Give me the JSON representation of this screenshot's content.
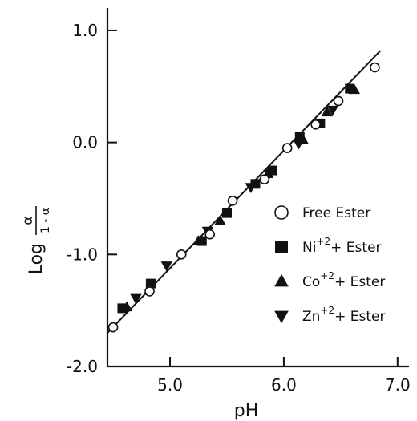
{
  "chart_data": {
    "type": "scatter",
    "title": "",
    "xlabel": "pH",
    "ylabel": {
      "prefix": "Log",
      "numerator": "α",
      "denominator": "1 - α"
    },
    "xlim": [
      4.45,
      7.1
    ],
    "ylim": [
      -2.0,
      1.2
    ],
    "x_ticks": [
      5.0,
      6.0,
      7.0
    ],
    "x_tick_labels": [
      "5.0",
      "6.0",
      "7.0"
    ],
    "y_ticks": [
      1.0,
      0.0,
      -1.0,
      -2.0
    ],
    "y_tick_labels": [
      "1.0",
      "0.0",
      "-1.0",
      "-2.0"
    ],
    "grid": false,
    "legend_position": "right",
    "fit_line": {
      "x": [
        4.45,
        6.85
      ],
      "y": [
        -1.7,
        0.82
      ]
    },
    "series": [
      {
        "name": "Free Ester",
        "marker": "circle-open",
        "x": [
          4.5,
          4.82,
          5.1,
          5.35,
          5.55,
          5.83,
          6.03,
          6.28,
          6.48,
          6.8
        ],
        "y": [
          -1.65,
          -1.33,
          -1.0,
          -0.82,
          -0.52,
          -0.33,
          -0.05,
          0.16,
          0.37,
          0.67
        ]
      },
      {
        "name": "Ni",
        "name_sup": "+2",
        "name_suffix": "+ Ester",
        "marker": "square-filled",
        "x": [
          4.58,
          4.83,
          5.28,
          5.5,
          5.75,
          5.9,
          6.14,
          6.32,
          6.58
        ],
        "y": [
          -1.48,
          -1.26,
          -0.88,
          -0.63,
          -0.37,
          -0.25,
          0.05,
          0.17,
          0.48
        ]
      },
      {
        "name": "Co",
        "name_sup": "+2",
        "name_suffix": "+ Ester",
        "marker": "triangle-up-filled",
        "x": [
          4.62,
          5.25,
          5.44,
          5.86,
          6.17,
          6.38,
          6.62
        ],
        "y": [
          -1.47,
          -0.88,
          -0.7,
          -0.28,
          0.02,
          0.27,
          0.47
        ]
      },
      {
        "name": "Zn",
        "name_sup": "+2",
        "name_suffix": "+ Ester",
        "marker": "triangle-down-filled",
        "x": [
          4.7,
          4.97,
          5.33,
          5.71,
          5.87,
          6.13,
          6.43
        ],
        "y": [
          -1.39,
          -1.1,
          -0.79,
          -0.4,
          -0.28,
          -0.01,
          0.29
        ]
      }
    ]
  }
}
